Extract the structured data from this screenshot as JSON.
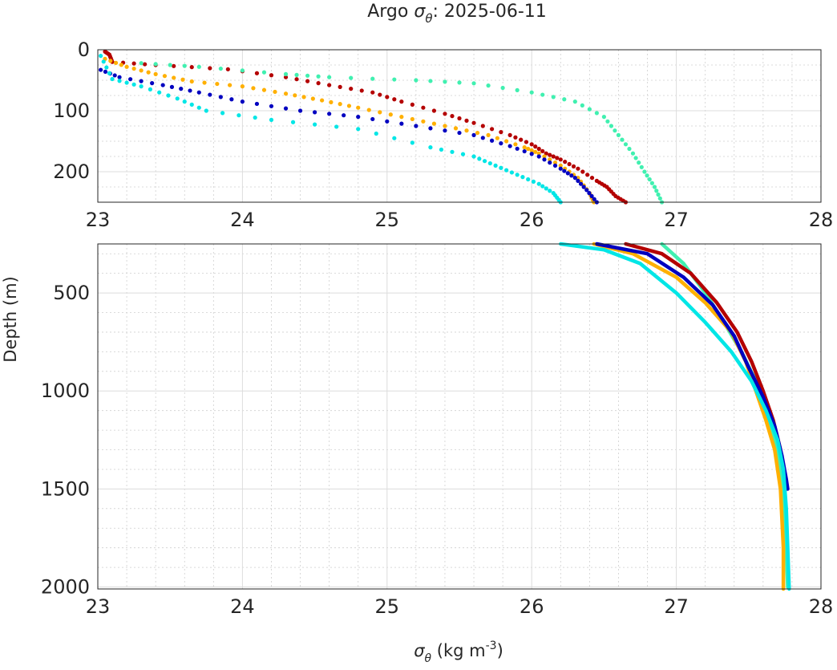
{
  "title": {
    "prefix": "Argo ",
    "symbol": "σ",
    "subscript": "θ",
    "suffix": ": 2025-06-11"
  },
  "ylabel": "Depth (m)",
  "xlabel": {
    "symbol": "σ",
    "subscript": "θ",
    "units_prefix": " (kg m",
    "units_exponent": "-3",
    "units_suffix": ")"
  },
  "chart_data": [
    {
      "type": "scatter",
      "panel": "upper",
      "xlim": [
        23,
        28
      ],
      "ylim": [
        0,
        250
      ],
      "y_reversed": true,
      "xticks": [
        23,
        24,
        25,
        26,
        27,
        28
      ],
      "yticks": [
        0,
        100,
        200
      ],
      "series": [
        {
          "name": "dark red float",
          "color": "#b40000",
          "x": [
            23.05,
            23.08,
            23.1,
            23.4,
            23.9,
            24.3,
            24.6,
            24.9,
            25.1,
            25.4,
            25.6,
            25.85,
            26.0,
            26.1,
            26.2,
            26.32,
            26.45,
            26.52,
            26.58,
            26.65
          ],
          "y": [
            3,
            8,
            20,
            25,
            32,
            45,
            58,
            70,
            85,
            105,
            120,
            140,
            155,
            170,
            180,
            195,
            215,
            225,
            240,
            250
          ]
        },
        {
          "name": "orange float",
          "color": "#ffb000",
          "x": [
            23.05,
            23.2,
            23.4,
            23.65,
            24.0,
            24.3,
            24.55,
            24.8,
            25.1,
            25.4,
            25.7,
            25.95,
            26.05,
            26.2,
            26.32,
            26.4,
            26.43
          ],
          "y": [
            15,
            28,
            40,
            52,
            60,
            72,
            83,
            95,
            110,
            125,
            140,
            160,
            170,
            190,
            210,
            235,
            250
          ]
        },
        {
          "name": "blue float",
          "color": "#0000c0",
          "x": [
            23.02,
            23.15,
            23.45,
            23.7,
            24.0,
            24.4,
            24.8,
            25.2,
            25.6,
            25.85,
            26.05,
            26.2,
            26.3,
            26.38,
            26.45
          ],
          "y": [
            33,
            45,
            58,
            70,
            85,
            100,
            110,
            125,
            140,
            158,
            175,
            195,
            210,
            230,
            250
          ]
        },
        {
          "name": "cyan float",
          "color": "#00e6e6",
          "x": [
            23.02,
            23.1,
            23.3,
            23.55,
            23.75,
            24.2,
            24.8,
            25.3,
            25.6,
            25.75,
            25.9,
            26.05,
            26.15,
            26.2
          ],
          "y": [
            10,
            48,
            60,
            80,
            100,
            115,
            130,
            160,
            175,
            190,
            205,
            220,
            235,
            250
          ]
        },
        {
          "name": "aquamarine float",
          "color": "#40f0b0",
          "x": [
            23.3,
            23.7,
            24.3,
            24.6,
            25.2,
            25.6,
            26.0,
            26.3,
            26.5,
            26.6,
            26.7,
            26.78,
            26.85,
            26.9
          ],
          "y": [
            22,
            28,
            40,
            45,
            50,
            55,
            70,
            85,
            110,
            140,
            170,
            200,
            225,
            250
          ]
        }
      ]
    },
    {
      "type": "line",
      "panel": "lower",
      "xlim": [
        23,
        28
      ],
      "ylim": [
        250,
        2010
      ],
      "y_reversed": true,
      "xticks": [
        23,
        24,
        25,
        26,
        27,
        28
      ],
      "yticks": [
        500,
        1000,
        1500,
        2000
      ],
      "series": [
        {
          "name": "aquamarine float",
          "color": "#40f0b0",
          "x": [
            26.9,
            27.05,
            27.2,
            27.33,
            27.45,
            27.55,
            27.62,
            27.68,
            27.72,
            27.75,
            27.76,
            27.77
          ],
          "y": [
            250,
            350,
            500,
            650,
            800,
            950,
            1100,
            1250,
            1400,
            1600,
            1800,
            2000
          ]
        },
        {
          "name": "dark red float",
          "color": "#b40000",
          "x": [
            26.65,
            26.9,
            27.1,
            27.28,
            27.42,
            27.52,
            27.6,
            27.67,
            27.72,
            27.76
          ],
          "y": [
            250,
            300,
            400,
            550,
            700,
            850,
            1000,
            1150,
            1300,
            1500
          ]
        },
        {
          "name": "orange float",
          "color": "#ffb000",
          "x": [
            26.43,
            26.7,
            27.0,
            27.2,
            27.38,
            27.48,
            27.55,
            27.62,
            27.68,
            27.72,
            27.74,
            27.74
          ],
          "y": [
            250,
            300,
            420,
            550,
            700,
            850,
            1000,
            1150,
            1300,
            1500,
            1800,
            2010
          ]
        },
        {
          "name": "blue float",
          "color": "#0000c0",
          "x": [
            26.45,
            26.8,
            27.05,
            27.25,
            27.4,
            27.5,
            27.6,
            27.68,
            27.73,
            27.76,
            27.77
          ],
          "y": [
            250,
            300,
            420,
            560,
            720,
            880,
            1030,
            1180,
            1330,
            1450,
            1500
          ]
        },
        {
          "name": "cyan float",
          "color": "#00e6e6",
          "x": [
            26.2,
            26.5,
            26.75,
            27.0,
            27.2,
            27.38,
            27.52,
            27.62,
            27.7,
            27.74,
            27.76,
            27.77,
            27.78
          ],
          "y": [
            250,
            280,
            350,
            500,
            650,
            800,
            950,
            1100,
            1250,
            1400,
            1600,
            1800,
            2010
          ]
        }
      ]
    }
  ]
}
